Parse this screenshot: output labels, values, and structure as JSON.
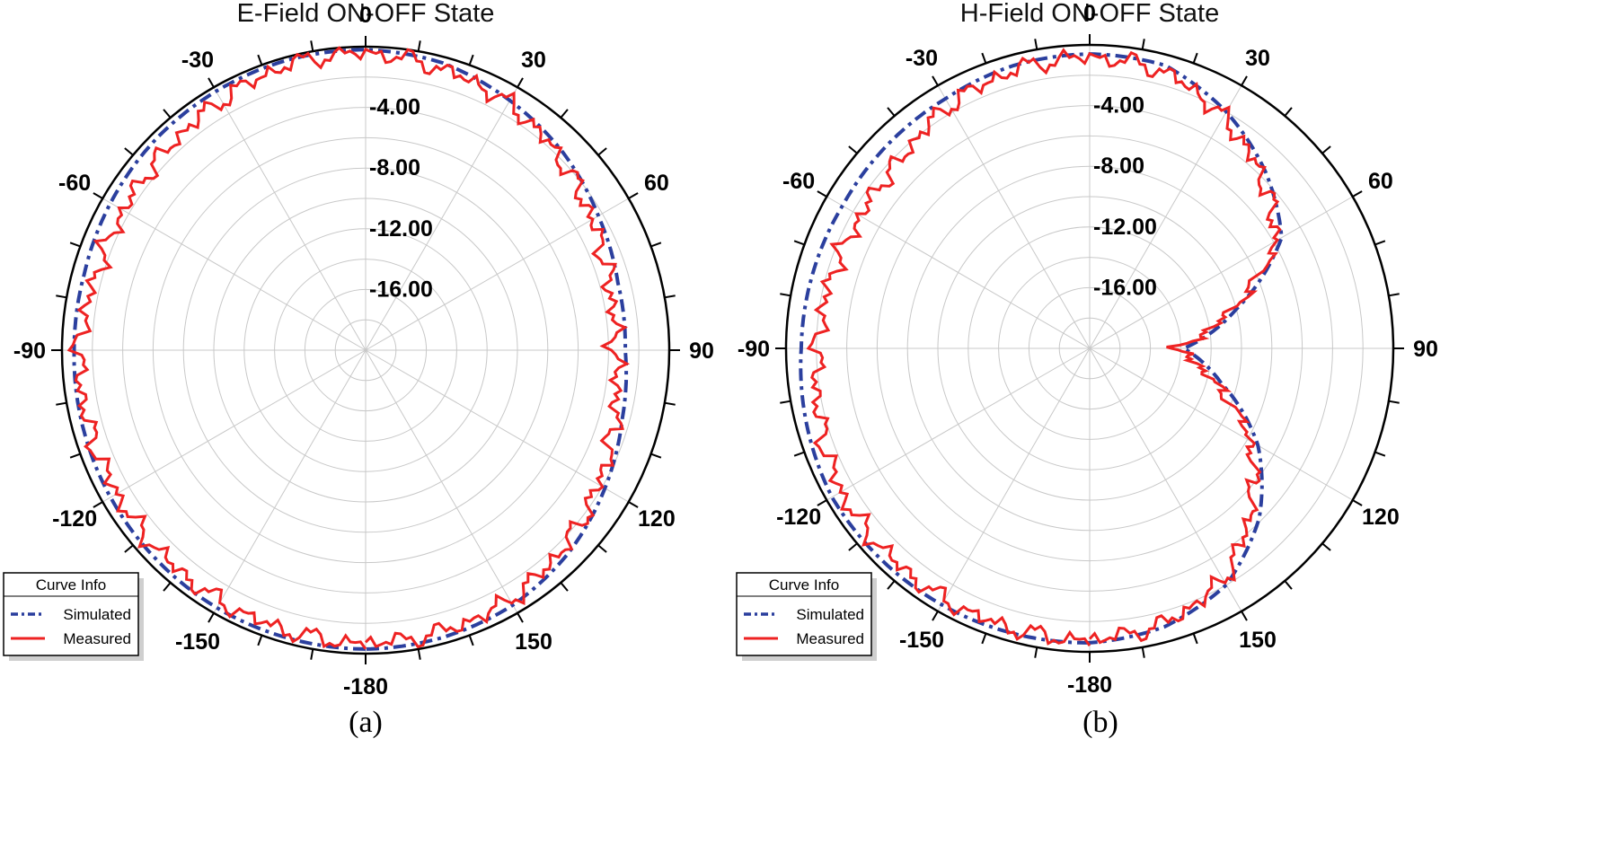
{
  "chart_data": [
    {
      "type": "polar-line",
      "panel": "(a)",
      "title": "E-Field ON-OFF State",
      "r_min": -20,
      "r_max": 0,
      "r_ticks": [
        -4,
        -8,
        -12,
        -16
      ],
      "r_tick_labels": [
        "-4.00",
        "-8.00",
        "-12.00",
        "-16.00"
      ],
      "angle_ticks": [
        0,
        30,
        60,
        90,
        120,
        150,
        180,
        -150,
        -120,
        -90,
        -60,
        -30
      ],
      "angle_labels": [
        "0",
        "30",
        "60",
        "90",
        "120",
        "150",
        "-180",
        "-150",
        "-120",
        "-90",
        "-60",
        "-30"
      ],
      "legend_title": "Curve Info",
      "series": [
        {
          "name": "Simulated",
          "color": "#2b3f9e",
          "style": "dash-dot",
          "points": [
            [
              -180,
              -0.3
            ],
            [
              -150,
              -0.4
            ],
            [
              -120,
              -0.6
            ],
            [
              -90,
              -0.8
            ],
            [
              -75,
              -0.8
            ],
            [
              -60,
              -0.6
            ],
            [
              -45,
              -0.4
            ],
            [
              -30,
              -0.3
            ],
            [
              -15,
              -0.2
            ],
            [
              0,
              -0.2
            ],
            [
              15,
              -0.4
            ],
            [
              30,
              -1.0
            ],
            [
              45,
              -1.6
            ],
            [
              60,
              -2.3
            ],
            [
              75,
              -2.8
            ],
            [
              90,
              -2.9
            ],
            [
              105,
              -2.5
            ],
            [
              120,
              -1.8
            ],
            [
              135,
              -1.1
            ],
            [
              150,
              -0.6
            ],
            [
              165,
              -0.4
            ],
            [
              180,
              -0.3
            ]
          ]
        },
        {
          "name": "Measured",
          "color": "#ee2222",
          "style": "solid",
          "points": [
            [
              -180,
              -0.7
            ],
            [
              -150,
              -0.9
            ],
            [
              -120,
              -1.1
            ],
            [
              -90,
              -1.1
            ],
            [
              -75,
              -1.6
            ],
            [
              -60,
              -1.6
            ],
            [
              -45,
              -1.4
            ],
            [
              -30,
              -1.0
            ],
            [
              -15,
              -0.5
            ],
            [
              0,
              -0.4
            ],
            [
              15,
              -0.8
            ],
            [
              30,
              -1.2
            ],
            [
              45,
              -2.0
            ],
            [
              60,
              -2.8
            ],
            [
              75,
              -3.4
            ],
            [
              90,
              -3.6
            ],
            [
              105,
              -3.0
            ],
            [
              120,
              -2.3
            ],
            [
              135,
              -1.6
            ],
            [
              150,
              -1.0
            ],
            [
              165,
              -0.8
            ],
            [
              180,
              -0.7
            ]
          ]
        }
      ]
    },
    {
      "type": "polar-line",
      "panel": "(b)",
      "title": "H-Field ON-OFF State",
      "r_min": -20,
      "r_max": 0,
      "r_ticks": [
        -4,
        -8,
        -12,
        -16
      ],
      "r_tick_labels": [
        "-4.00",
        "-8.00",
        "-12.00",
        "-16.00"
      ],
      "angle_ticks": [
        0,
        30,
        60,
        90,
        120,
        150,
        180,
        -150,
        -120,
        -90,
        -60,
        -30
      ],
      "angle_labels": [
        "0",
        "30",
        "60",
        "90",
        "120",
        "150",
        "-180",
        "-150",
        "-120",
        "-90",
        "-60",
        "-30"
      ],
      "legend_title": "Curve Info",
      "series": [
        {
          "name": "Simulated",
          "color": "#2b3f9e",
          "style": "dash-dot",
          "points": [
            [
              -180,
              -0.6
            ],
            [
              -150,
              -0.5
            ],
            [
              -120,
              -0.4
            ],
            [
              -90,
              -1.0
            ],
            [
              -60,
              -1.2
            ],
            [
              -45,
              -1.1
            ],
            [
              -30,
              -1.0
            ],
            [
              -15,
              -0.7
            ],
            [
              0,
              -0.6
            ],
            [
              15,
              -0.7
            ],
            [
              30,
              -2.0
            ],
            [
              45,
              -3.6
            ],
            [
              60,
              -5.4
            ],
            [
              75,
              -10.0
            ],
            [
              90,
              -13.8
            ],
            [
              105,
              -11.0
            ],
            [
              120,
              -7.2
            ],
            [
              135,
              -4.2
            ],
            [
              150,
              -2.0
            ],
            [
              165,
              -1.0
            ],
            [
              180,
              -0.6
            ]
          ]
        },
        {
          "name": "Measured",
          "color": "#ee2222",
          "style": "solid",
          "points": [
            [
              -180,
              -0.8
            ],
            [
              -150,
              -0.9
            ],
            [
              -120,
              -1.1
            ],
            [
              -90,
              -2.1
            ],
            [
              -60,
              -2.6
            ],
            [
              -45,
              -2.4
            ],
            [
              -30,
              -1.5
            ],
            [
              -15,
              -1.0
            ],
            [
              0,
              -0.8
            ],
            [
              15,
              -1.1
            ],
            [
              30,
              -2.4
            ],
            [
              45,
              -4.0
            ],
            [
              60,
              -5.8
            ],
            [
              75,
              -10.4
            ],
            [
              90,
              -14.4
            ],
            [
              105,
              -11.6
            ],
            [
              120,
              -7.8
            ],
            [
              135,
              -5.0
            ],
            [
              150,
              -2.4
            ],
            [
              165,
              -1.2
            ],
            [
              180,
              -0.8
            ]
          ]
        }
      ]
    }
  ]
}
